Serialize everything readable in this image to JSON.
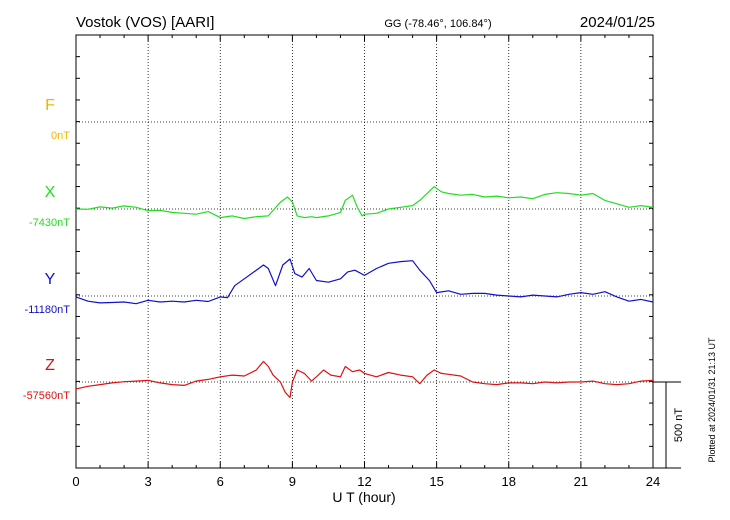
{
  "header": {
    "station": "Vostok (VOS)  [AARI]",
    "coords": "GG (-78.46°, 106.84°)",
    "date": "2024/01/25"
  },
  "footer": {
    "plotted": "Plotted at 2024/01/31 21:13 UT"
  },
  "chart_data": {
    "type": "line",
    "xlabel": "U T (hour)",
    "xlim": [
      0,
      24
    ],
    "xticks": [
      "0",
      "3",
      "6",
      "9",
      "12",
      "15",
      "18",
      "21",
      "24"
    ],
    "scale_bar": {
      "label": "500 nT",
      "value": 500
    },
    "colors": {
      "F": "#f2b400",
      "X": "#22dd22",
      "Y": "#1010cc",
      "Z": "#dd1111"
    },
    "series": [
      {
        "name": "F",
        "baseline_label": "0nT",
        "x": [],
        "y": []
      },
      {
        "name": "X",
        "baseline_label": "-7430nT",
        "x": [
          0,
          0.5,
          1,
          1.5,
          2,
          2.5,
          3,
          3.5,
          4,
          4.5,
          5,
          5.5,
          6,
          6.5,
          7,
          7.5,
          8,
          8.5,
          8.8,
          9,
          9.2,
          9.5,
          9.8,
          10,
          10.5,
          11,
          11.2,
          11.5,
          11.7,
          11.9,
          12,
          12.5,
          13,
          13.5,
          14,
          14.3,
          14.6,
          14.9,
          15.2,
          15.5,
          16,
          16.5,
          17,
          17.5,
          18,
          18.5,
          19,
          19.5,
          20,
          20.5,
          21,
          21.5,
          22,
          22.5,
          23,
          23.5,
          24
        ],
        "y": [
          -7430,
          -7432,
          -7418,
          -7425,
          -7412,
          -7420,
          -7440,
          -7438,
          -7450,
          -7455,
          -7460,
          -7445,
          -7480,
          -7470,
          -7485,
          -7475,
          -7470,
          -7390,
          -7360,
          -7390,
          -7470,
          -7480,
          -7475,
          -7480,
          -7470,
          -7450,
          -7380,
          -7350,
          -7420,
          -7470,
          -7460,
          -7455,
          -7430,
          -7420,
          -7410,
          -7380,
          -7340,
          -7300,
          -7330,
          -7340,
          -7350,
          -7345,
          -7360,
          -7355,
          -7365,
          -7360,
          -7370,
          -7345,
          -7335,
          -7340,
          -7350,
          -7340,
          -7380,
          -7400,
          -7420,
          -7410,
          -7420
        ]
      },
      {
        "name": "Y",
        "baseline_label": "-11180nT",
        "x": [
          0,
          0.5,
          1,
          1.5,
          2,
          2.5,
          3,
          3.5,
          4,
          4.5,
          5,
          5.5,
          6,
          6.3,
          6.6,
          7,
          7.5,
          7.8,
          8,
          8.3,
          8.6,
          8.9,
          9.1,
          9.4,
          9.7,
          10,
          10.5,
          11,
          11.3,
          11.6,
          12,
          12.5,
          13,
          13.5,
          14,
          14.3,
          14.7,
          15,
          15.5,
          16,
          16.5,
          17,
          17.5,
          18,
          18.5,
          19,
          19.5,
          20,
          20.5,
          21,
          21.5,
          22,
          22.5,
          23,
          23.5,
          24
        ],
        "y": [
          -11185,
          -11210,
          -11220,
          -11218,
          -11215,
          -11225,
          -11205,
          -11215,
          -11210,
          -11215,
          -11205,
          -11212,
          -11185,
          -11190,
          -11120,
          -11080,
          -11030,
          -11000,
          -11020,
          -11120,
          -11000,
          -10965,
          -11050,
          -11070,
          -11020,
          -11090,
          -11100,
          -11080,
          -11040,
          -11030,
          -11060,
          -11020,
          -10990,
          -10980,
          -10975,
          -11030,
          -11090,
          -11160,
          -11150,
          -11170,
          -11165,
          -11165,
          -11175,
          -11180,
          -11185,
          -11175,
          -11180,
          -11185,
          -11170,
          -11160,
          -11170,
          -11155,
          -11185,
          -11210,
          -11200,
          -11215
        ]
      },
      {
        "name": "Z",
        "baseline_label": "-57560nT",
        "x": [
          0,
          0.5,
          1,
          1.5,
          2,
          2.5,
          3,
          3.5,
          4,
          4.5,
          5,
          5.5,
          6,
          6.5,
          7,
          7.5,
          7.8,
          8,
          8.2,
          8.5,
          8.7,
          8.9,
          9,
          9.2,
          9.5,
          9.8,
          10,
          10.3,
          10.6,
          11,
          11.2,
          11.5,
          11.8,
          12,
          12.5,
          13,
          13.5,
          14,
          14.3,
          14.6,
          14.9,
          15.2,
          15.5,
          16,
          16.5,
          17,
          17.5,
          18,
          18.5,
          19,
          19.5,
          20,
          20.5,
          21,
          21.5,
          22,
          22.5,
          23,
          23.5,
          24
        ],
        "y": [
          -57600,
          -57585,
          -57575,
          -57565,
          -57558,
          -57555,
          -57550,
          -57565,
          -57575,
          -57580,
          -57555,
          -57545,
          -57530,
          -57520,
          -57525,
          -57490,
          -57440,
          -57470,
          -57520,
          -57560,
          -57620,
          -57650,
          -57560,
          -57490,
          -57510,
          -57555,
          -57530,
          -57490,
          -57520,
          -57530,
          -57470,
          -57500,
          -57490,
          -57510,
          -57530,
          -57505,
          -57520,
          -57530,
          -57570,
          -57520,
          -57490,
          -57510,
          -57515,
          -57525,
          -57560,
          -57570,
          -57575,
          -57565,
          -57565,
          -57570,
          -57560,
          -57565,
          -57560,
          -57560,
          -57555,
          -57570,
          -57575,
          -57570,
          -57555,
          -57550
        ]
      }
    ]
  }
}
